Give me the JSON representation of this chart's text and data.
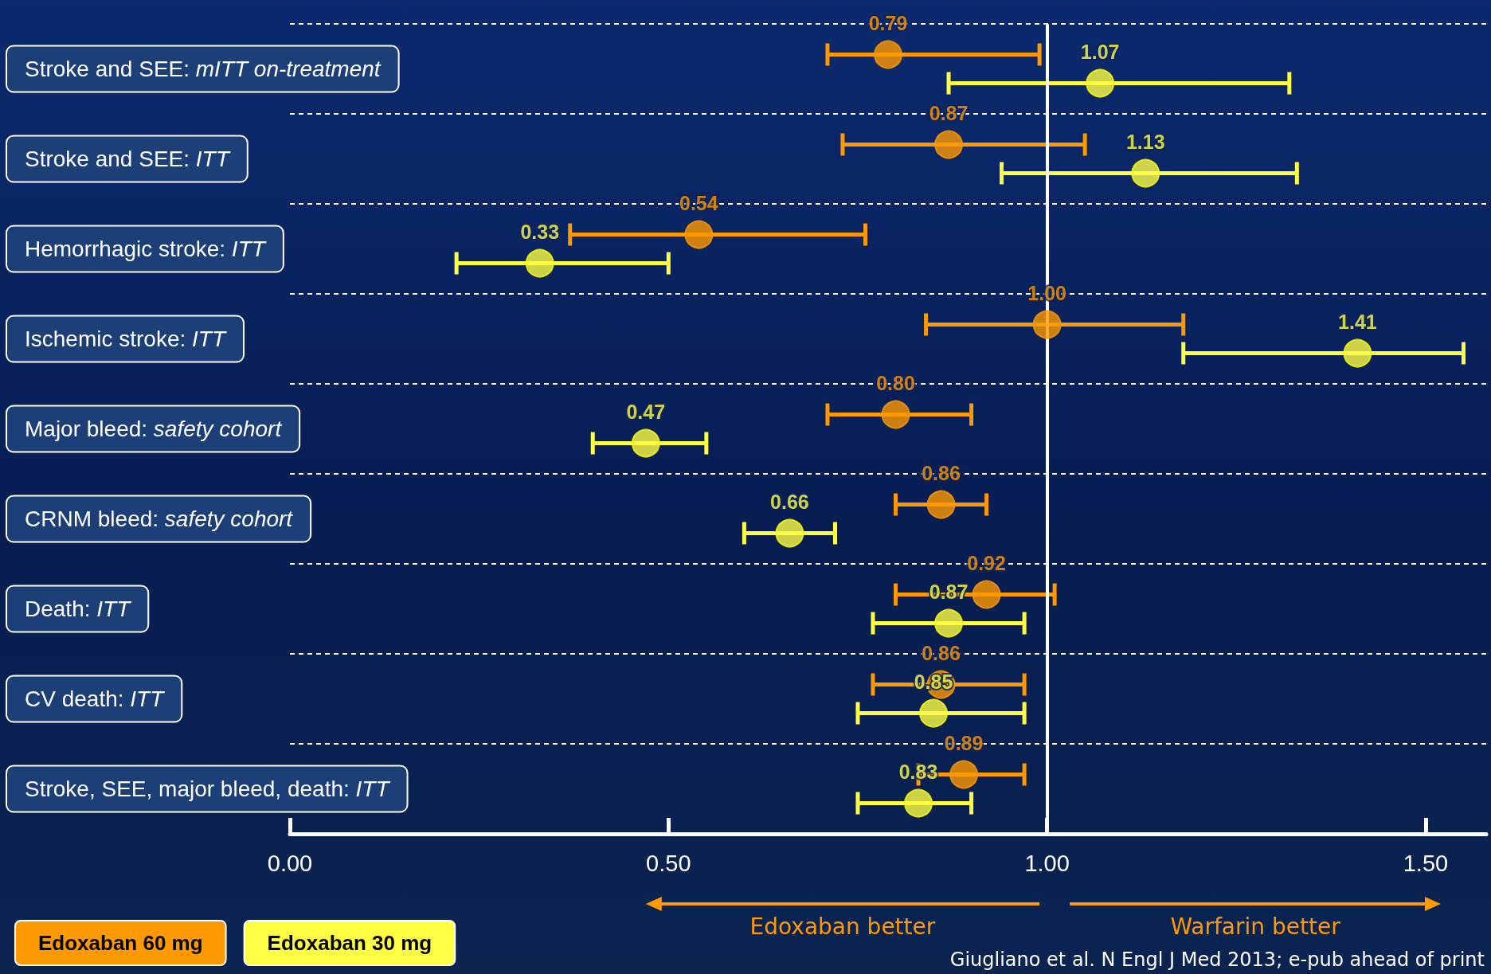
{
  "chart_data": {
    "type": "scatter",
    "orientation": "horizontal",
    "categories": [
      "Stroke and SEE: mITT on-treatment",
      "Stroke and SEE: ITT",
      "Hemorrhagic stroke: ITT",
      "Ischemic stroke: ITT",
      "Major bleed: safety cohort",
      "CRNM bleed: safety cohort",
      "Death: ITT",
      "CV death: ITT",
      "Stroke, SEE, major bleed, death: ITT"
    ],
    "series": [
      {
        "name": "Edoxaban 60 mg",
        "color": "#ff9900",
        "values": [
          0.79,
          0.87,
          0.54,
          1.0,
          0.8,
          0.86,
          0.92,
          0.86,
          0.89
        ],
        "value_labels": [
          "0.79",
          "0.87",
          "0.54",
          "1.00",
          "0.80",
          "0.86",
          "0.92",
          "0.86",
          "0.89"
        ],
        "errors": [
          [
            0.71,
            0.99
          ],
          [
            0.73,
            1.05
          ],
          [
            0.37,
            0.76
          ],
          [
            0.84,
            1.18
          ],
          [
            0.71,
            0.9
          ],
          [
            0.8,
            0.92
          ],
          [
            0.8,
            1.01
          ],
          [
            0.77,
            0.97
          ],
          [
            0.83,
            0.97
          ]
        ]
      },
      {
        "name": "Edoxaban 30 mg",
        "color": "#ffff44",
        "values": [
          1.07,
          1.13,
          0.33,
          1.41,
          0.47,
          0.66,
          0.87,
          0.85,
          0.83
        ],
        "value_labels": [
          "1.07",
          "1.13",
          "0.33",
          "1.41",
          "0.47",
          "0.66",
          "0.87",
          "0.85",
          "0.83"
        ],
        "errors": [
          [
            0.87,
            1.32
          ],
          [
            0.94,
            1.33
          ],
          [
            0.22,
            0.5
          ],
          [
            1.18,
            1.55
          ],
          [
            0.4,
            0.55
          ],
          [
            0.6,
            0.72
          ],
          [
            0.77,
            0.97
          ],
          [
            0.75,
            0.97
          ],
          [
            0.75,
            0.9
          ]
        ]
      }
    ],
    "xlim": [
      0,
      1.58
    ],
    "xticks": [
      {
        "value": 0,
        "label": "0.00"
      },
      {
        "value": 0.5,
        "label": "0.50"
      },
      {
        "value": 1,
        "label": "1.00"
      },
      {
        "value": 1.5,
        "label": "1.50"
      }
    ],
    "ref_lines": [
      {
        "axis": "x",
        "value": 1,
        "color": "#ffffff"
      }
    ],
    "grid": "y",
    "legend": "bottom left",
    "marker": "circle",
    "annotations": [
      "Edoxaban better",
      "Warfarin better",
      "Giugliano et al. N Engl J Med 2013; e-pub ahead of print"
    ]
  }
}
